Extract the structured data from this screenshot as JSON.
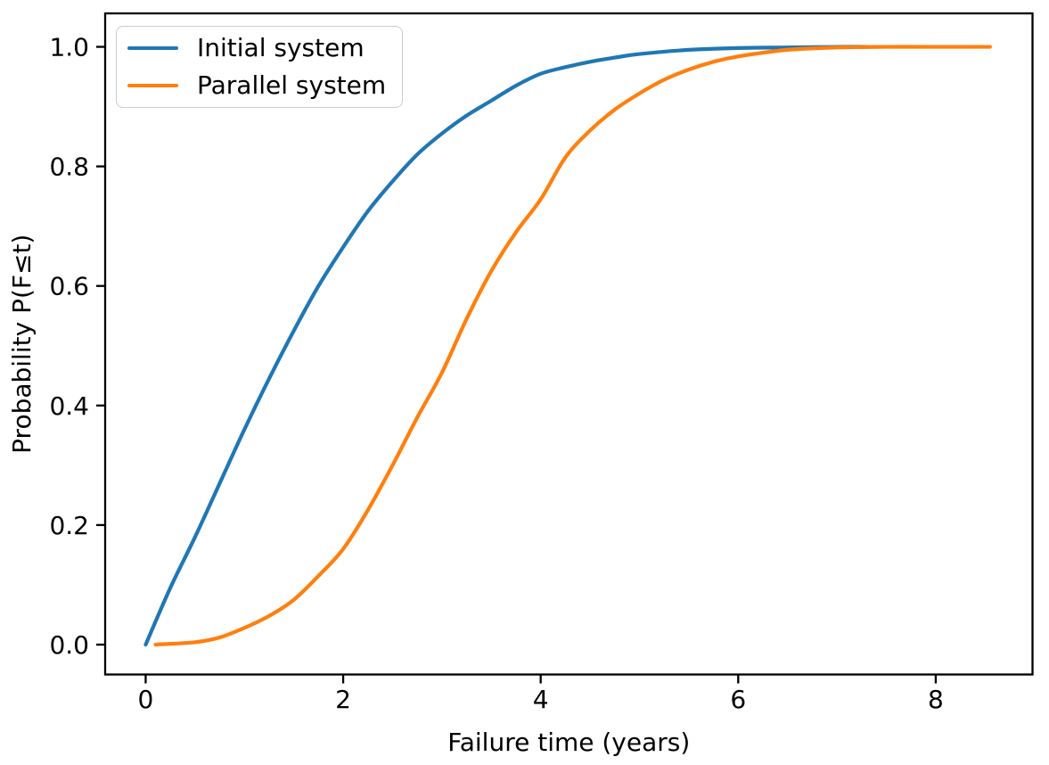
{
  "figure": {
    "background": "#ffffff"
  },
  "chart_data": {
    "type": "line",
    "title": "",
    "xlabel": "Failure time (years)",
    "ylabel": "Probability P(F≤t)",
    "xlim": [
      -0.41,
      8.98
    ],
    "ylim": [
      -0.05,
      1.056
    ],
    "xticks": [
      0,
      2,
      4,
      6,
      8
    ],
    "xtick_labels": [
      "0",
      "2",
      "4",
      "6",
      "8"
    ],
    "yticks": [
      0.0,
      0.2,
      0.4,
      0.6,
      0.8,
      1.0
    ],
    "ytick_labels": [
      "0.0",
      "0.2",
      "0.4",
      "0.6",
      "0.8",
      "1.0"
    ],
    "grid": false,
    "legend": {
      "position": "upper left",
      "labels": [
        "Initial system",
        "Parallel system"
      ]
    },
    "series": [
      {
        "name": "Initial system",
        "color": "#1f77b4",
        "x": [
          0,
          0.25,
          0.5,
          0.75,
          1.0,
          1.25,
          1.5,
          1.75,
          2.0,
          2.25,
          2.5,
          2.75,
          3.0,
          3.25,
          3.5,
          3.75,
          4.0,
          4.25,
          4.5,
          4.75,
          5.0,
          5.5,
          6.0,
          6.5,
          7.0,
          7.3
        ],
        "y": [
          0,
          0.095,
          0.18,
          0.27,
          0.36,
          0.445,
          0.525,
          0.6,
          0.665,
          0.725,
          0.775,
          0.82,
          0.855,
          0.885,
          0.91,
          0.935,
          0.955,
          0.966,
          0.975,
          0.982,
          0.988,
          0.995,
          0.998,
          0.999,
          1.0,
          1.0
        ]
      },
      {
        "name": "Parallel system",
        "color": "#ff7f0e",
        "x": [
          0.1,
          0.5,
          0.75,
          1.0,
          1.25,
          1.5,
          1.75,
          2.0,
          2.25,
          2.5,
          2.75,
          3.0,
          3.25,
          3.5,
          3.75,
          4.0,
          4.25,
          4.5,
          4.75,
          5.0,
          5.25,
          5.5,
          5.75,
          6.0,
          6.5,
          7.0,
          7.5,
          8.0,
          8.55
        ],
        "y": [
          0.0,
          0.004,
          0.012,
          0.028,
          0.048,
          0.075,
          0.115,
          0.16,
          0.225,
          0.3,
          0.38,
          0.455,
          0.545,
          0.625,
          0.69,
          0.745,
          0.815,
          0.86,
          0.895,
          0.922,
          0.945,
          0.962,
          0.975,
          0.984,
          0.995,
          0.999,
          1.0,
          1.0,
          1.0
        ]
      }
    ],
    "axis_color": "#000000",
    "text_color": "#000000"
  }
}
